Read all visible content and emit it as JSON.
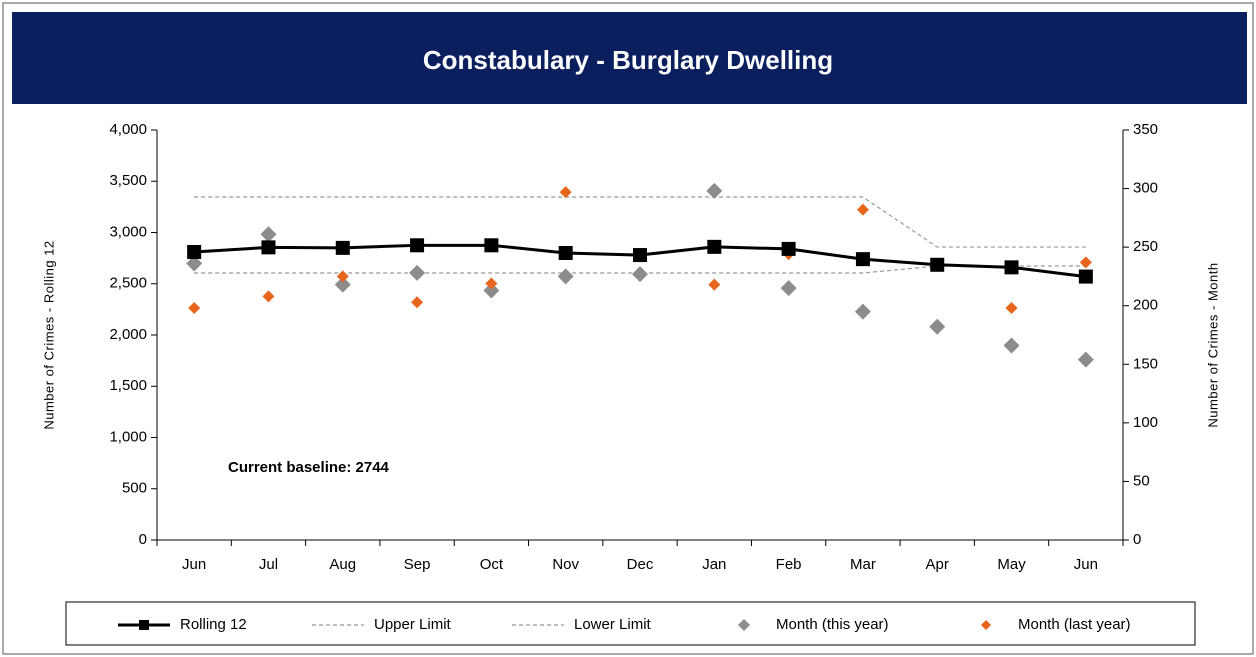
{
  "chart_data": {
    "type": "line",
    "title": "Constabulary - Burglary Dwelling",
    "y_label": "Number of Crimes  -  Rolling 12",
    "y2_label": "Number of Crimes  -  Month",
    "annotation": "Current baseline: 2744",
    "categories": [
      "Jun",
      "Jul",
      "Aug",
      "Sep",
      "Oct",
      "Nov",
      "Dec",
      "Jan",
      "Feb",
      "Mar",
      "Apr",
      "May",
      "Jun"
    ],
    "ylim": [
      0,
      4000
    ],
    "yticks": [
      0,
      {
        "value": 500,
        "label": "500"
      },
      {
        "value": 1000,
        "label": "1,000"
      },
      {
        "value": 1500,
        "label": "1,500"
      },
      {
        "value": 2000,
        "label": "2,000"
      },
      {
        "value": 2500,
        "label": "2,500"
      },
      {
        "value": 3000,
        "label": "3,000"
      },
      {
        "value": 3500,
        "label": "3,500"
      },
      {
        "value": 4000,
        "label": "4,000"
      }
    ],
    "y2lim": [
      0,
      350
    ],
    "y2ticks": [
      0,
      50,
      100,
      150,
      200,
      250,
      300,
      350
    ],
    "grid": false,
    "series": [
      {
        "name": "Rolling 12",
        "color": "#000000",
        "style": "line-square",
        "values": [
          2810,
          2855,
          2850,
          2875,
          2875,
          2800,
          2780,
          2860,
          2840,
          2740,
          2685,
          2660,
          2570
        ]
      },
      {
        "name": "Upper Limit",
        "color": "#999999",
        "style": "dashed",
        "values": [
          3346,
          3346,
          3346,
          3346,
          3346,
          3346,
          3346,
          3346,
          3346,
          3346,
          2858,
          2858,
          2858
        ]
      },
      {
        "name": "Lower Limit",
        "color": "#999999",
        "style": "dashed",
        "values": [
          2605,
          2605,
          2605,
          2605,
          2605,
          2605,
          2605,
          2605,
          2605,
          2605,
          2673,
          2673,
          2673
        ]
      },
      {
        "name": "Month (this year)",
        "color": "#8c8c8c",
        "style": "diamond",
        "axis": "y2",
        "values": [
          236,
          261,
          218,
          228,
          213,
          225,
          227,
          298,
          215,
          195,
          182,
          166,
          154
        ]
      },
      {
        "name": "Month (last year)",
        "color": "#e8661c",
        "style": "diamond-small",
        "axis": "y2",
        "values": [
          198,
          208,
          225,
          203,
          219,
          297,
          244,
          218,
          244,
          282,
          236,
          198,
          237
        ]
      }
    ]
  }
}
